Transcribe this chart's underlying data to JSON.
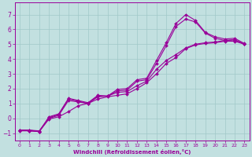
{
  "xlabel": "Windchill (Refroidissement éolien,°C)",
  "xlim": [
    -0.5,
    23.5
  ],
  "ylim": [
    -1.5,
    7.8
  ],
  "xticks": [
    0,
    1,
    2,
    3,
    4,
    5,
    6,
    7,
    8,
    9,
    10,
    11,
    12,
    13,
    14,
    15,
    16,
    17,
    18,
    19,
    20,
    21,
    22,
    23
  ],
  "yticks": [
    -1,
    0,
    1,
    2,
    3,
    4,
    5,
    6,
    7
  ],
  "background_color": "#c2e0e0",
  "grid_color": "#a0c8c8",
  "line_color": "#990099",
  "line_width": 0.8,
  "marker": "D",
  "marker_size": 2.0,
  "lines": [
    {
      "x": [
        0,
        1,
        2,
        3,
        4,
        5,
        6,
        7,
        8,
        9,
        10,
        11,
        12,
        13,
        14,
        15,
        16,
        17,
        18,
        19,
        20,
        21,
        22,
        23
      ],
      "y": [
        -0.8,
        -0.8,
        -0.9,
        0.1,
        0.3,
        1.35,
        1.2,
        1.05,
        1.55,
        1.5,
        1.95,
        2.0,
        2.6,
        2.7,
        3.9,
        5.1,
        6.4,
        7.0,
        6.6,
        5.8,
        5.5,
        5.35,
        5.4,
        5.05
      ]
    },
    {
      "x": [
        0,
        1,
        2,
        3,
        4,
        5,
        6,
        7,
        8,
        9,
        10,
        11,
        12,
        13,
        14,
        15,
        16,
        17,
        18,
        19,
        20,
        21,
        22,
        23
      ],
      "y": [
        -0.8,
        -0.8,
        -0.85,
        0.05,
        0.25,
        1.3,
        1.15,
        1.0,
        1.5,
        1.5,
        1.85,
        1.9,
        2.5,
        2.6,
        3.7,
        4.9,
        6.2,
        6.7,
        6.5,
        5.75,
        5.4,
        5.25,
        5.3,
        5.0
      ]
    },
    {
      "x": [
        0,
        1,
        2,
        3,
        4,
        5,
        6,
        7,
        8,
        9,
        10,
        11,
        12,
        13,
        14,
        15,
        16,
        17,
        18,
        19,
        20,
        21,
        22,
        23
      ],
      "y": [
        -0.8,
        -0.85,
        -0.9,
        0.0,
        0.2,
        1.2,
        1.1,
        1.0,
        1.45,
        1.5,
        1.75,
        1.8,
        2.2,
        2.5,
        3.3,
        3.9,
        4.3,
        4.75,
        5.0,
        5.1,
        5.15,
        5.25,
        5.3,
        5.0
      ]
    },
    {
      "x": [
        0,
        1,
        2,
        3,
        4,
        5,
        6,
        7,
        8,
        9,
        10,
        11,
        12,
        13,
        14,
        15,
        16,
        17,
        18,
        19,
        20,
        21,
        22,
        23
      ],
      "y": [
        -0.85,
        -0.85,
        -0.9,
        -0.05,
        0.1,
        0.45,
        0.85,
        1.0,
        1.3,
        1.45,
        1.55,
        1.65,
        2.0,
        2.4,
        3.0,
        3.7,
        4.1,
        4.7,
        4.95,
        5.05,
        5.1,
        5.2,
        5.2,
        5.0
      ]
    }
  ]
}
